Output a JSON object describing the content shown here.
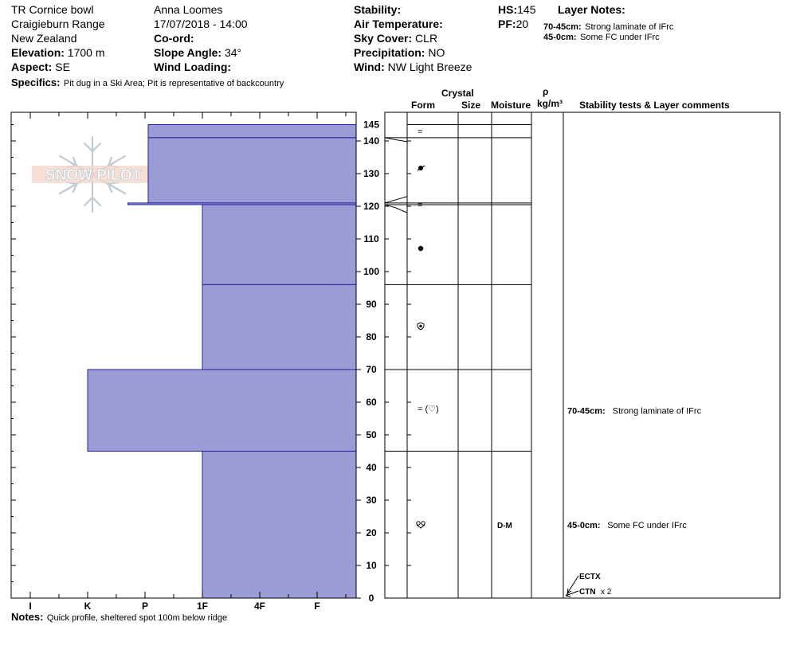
{
  "header": {
    "location": "TR Cornice bowl",
    "range": "Craigieburn Range",
    "country": "New Zealand",
    "elevation_label": "Elevation:",
    "elevation_value": "1700 m",
    "aspect_label": "Aspect:",
    "aspect_value": "SE",
    "observer": "Anna Loomes",
    "datetime": "17/07/2018 - 14:00",
    "coord_label": "Co-ord:",
    "slope_label": "Slope Angle:",
    "slope_value": "34°",
    "wind_loading_label": "Wind Loading:",
    "stability_label": "Stability:",
    "air_temp_label": "Air Temperature:",
    "sky_label": "Sky Cover:",
    "sky_value": "CLR",
    "precip_label": "Precipitation:",
    "precip_value": "NO",
    "wind_label": "Wind:",
    "wind_value": "NW Light Breeze",
    "hs_label": "HS:",
    "hs_value": "145",
    "pf_label": "PF:",
    "pf_value": "20",
    "layer_notes_title": "Layer Notes:",
    "layer_notes": [
      {
        "range": "70-45cm:",
        "text": "Strong laminate of IFrc"
      },
      {
        "range": "45-0cm:",
        "text": "Some FC under IFrc"
      }
    ],
    "specifics_label": "Specifics:",
    "specifics_value": "Pit dug in a Ski Area; Pit is representative of backcountry"
  },
  "logo": {
    "text": "SNOW PILOT"
  },
  "columns": {
    "crystal": "Crystal",
    "form": "Form",
    "size": "Size",
    "moisture": "Moisture",
    "rho": "ρ",
    "density_unit": "kg/m³",
    "comments": "Stability tests & Layer comments"
  },
  "notes_label": "Notes:",
  "notes_value": "Quick profile, sheltered spot 100m below ridge",
  "colors": {
    "layer_fill": "#9b9bd6",
    "layer_edge": "#1f1fa0",
    "axis": "#000000"
  },
  "chart_data": {
    "type": "bar",
    "title": "",
    "ylabel": "",
    "ylim": [
      0,
      145
    ],
    "y_ticks": [
      0,
      10,
      20,
      30,
      40,
      50,
      60,
      70,
      80,
      90,
      100,
      110,
      120,
      130,
      140,
      145
    ],
    "hardness_scale": [
      "I",
      "K",
      "P",
      "1F",
      "4F",
      "F"
    ],
    "layers": [
      {
        "top": 145,
        "bottom": 141,
        "hardness_index": 2.0,
        "form": "="
      },
      {
        "top": 141,
        "bottom": 121,
        "hardness_index": 2.0,
        "form": "pp-decomp"
      },
      {
        "top": 121,
        "bottom": 120.5,
        "hardness_index": 1.7,
        "form": "="
      },
      {
        "top": 120.5,
        "bottom": 96,
        "hardness_index": 3.0,
        "form": "rg"
      },
      {
        "top": 96,
        "bottom": 70,
        "hardness_index": 3.0,
        "form": "fc"
      },
      {
        "top": 70,
        "bottom": 45,
        "hardness_index": 1.0,
        "form": "= (fc)"
      },
      {
        "top": 45,
        "bottom": 0,
        "hardness_index": 3.0,
        "form": "fc-rounding",
        "moisture": "D-M"
      }
    ],
    "form_symbols": [
      {
        "height": 143,
        "text": "="
      },
      {
        "height": 120.5,
        "text": "="
      },
      {
        "height": 58,
        "text": "= (♡)"
      }
    ],
    "comments": [
      {
        "height": 57.5,
        "range": "70-45cm:",
        "text": "Strong laminate of IFrc"
      },
      {
        "height": 22.5,
        "range": "45-0cm:",
        "text": "Some FC under IFrc"
      }
    ],
    "tests": [
      {
        "height": 0,
        "label": "ECTX",
        "count": ""
      },
      {
        "height": 0,
        "label": "CTN",
        "count": "x 2"
      }
    ]
  }
}
